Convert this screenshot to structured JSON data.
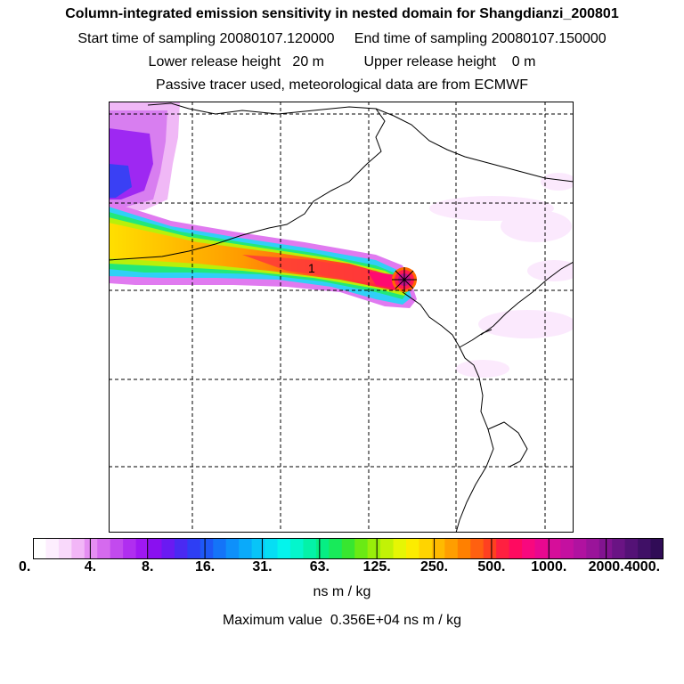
{
  "header": {
    "title": "Column-integrated emission sensitivity in nested domain for Shangdianzi_200801",
    "sampling_line": "Start time of sampling 20080107.120000     End time of sampling 20080107.150000",
    "release_line": "Lower release height   20 m          Upper release height    0 m",
    "tracer_line": "Passive tracer used, meteorological data are from ECMWF"
  },
  "chart_data": {
    "type": "heatmap",
    "title": "Column-integrated emission sensitivity in nested domain for Shangdianzi_200801",
    "colorbar": {
      "tick_labels": [
        "0.",
        "4.",
        "8.",
        "16.",
        "31.",
        "63.",
        "125.",
        "250.",
        "500.",
        "1000.",
        "2000.",
        "4000."
      ],
      "colors": [
        "#ffffff",
        "#fdeefe",
        "#f9d9fb",
        "#f2b6f7",
        "#e58ef2",
        "#d56aee",
        "#c24aee",
        "#b02ef0",
        "#9f18f2",
        "#8a10f0",
        "#6a1af2",
        "#4a2af2",
        "#2e3ef4",
        "#1e58f6",
        "#1474f8",
        "#0e90fa",
        "#0aaafa",
        "#08c4f8",
        "#06def4",
        "#04f4ec",
        "#04f6cc",
        "#04f2a8",
        "#06ee84",
        "#18ea5a",
        "#38e630",
        "#6aea14",
        "#98ee0a",
        "#c2f206",
        "#e6f604",
        "#fcec00",
        "#ffd400",
        "#ffba00",
        "#ff9e00",
        "#ff8000",
        "#ff6010",
        "#ff4020",
        "#ff2040",
        "#ff0a60",
        "#f8087e",
        "#e80890",
        "#d60e9a",
        "#c410a0",
        "#b012a0",
        "#9a149a",
        "#821490",
        "#6a1484",
        "#541276",
        "#401066",
        "#300c56"
      ],
      "unit": "ns m / kg"
    },
    "annotations": [
      "1"
    ],
    "max_value_text": "Maximum value  0.356E+04 ns m / kg",
    "grid": true,
    "receptor": "Shangdianzi"
  }
}
